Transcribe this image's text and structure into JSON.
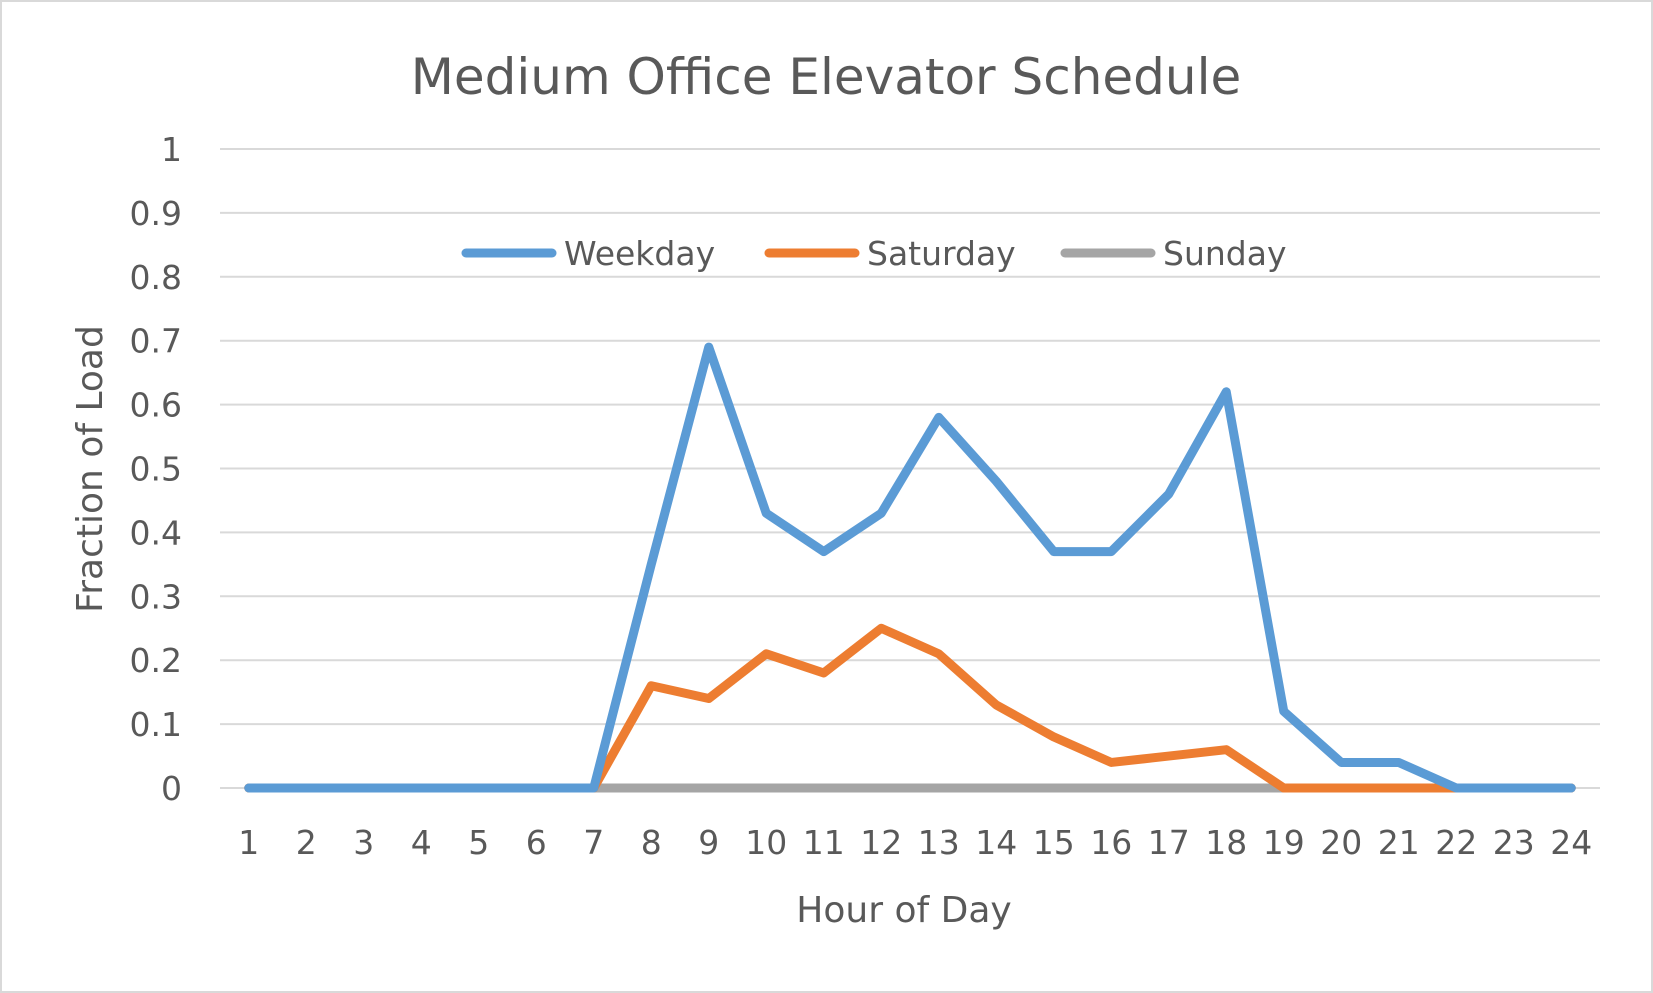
{
  "chart_data": {
    "type": "line",
    "title": "Medium Office Elevator Schedule",
    "xlabel": "Hour of Day",
    "ylabel": "Fraction of Load",
    "categories": [
      "1",
      "2",
      "3",
      "4",
      "5",
      "6",
      "7",
      "8",
      "9",
      "10",
      "11",
      "12",
      "13",
      "14",
      "15",
      "16",
      "17",
      "18",
      "19",
      "20",
      "21",
      "22",
      "23",
      "24"
    ],
    "ylim": [
      0,
      1
    ],
    "yticks": [
      "0",
      "0.1",
      "0.2",
      "0.3",
      "0.4",
      "0.5",
      "0.6",
      "0.7",
      "0.8",
      "0.9",
      "1"
    ],
    "grid": true,
    "legend_position": "top",
    "series": [
      {
        "name": "Weekday",
        "color": "#5b9bd5",
        "values": [
          0,
          0,
          0,
          0,
          0,
          0,
          0,
          0.35,
          0.69,
          0.43,
          0.37,
          0.43,
          0.58,
          0.48,
          0.37,
          0.37,
          0.46,
          0.62,
          0.12,
          0.04,
          0.04,
          0,
          0,
          0
        ]
      },
      {
        "name": "Saturday",
        "color": "#ed7d31",
        "values": [
          0,
          0,
          0,
          0,
          0,
          0,
          0,
          0.16,
          0.14,
          0.21,
          0.18,
          0.25,
          0.21,
          0.13,
          0.08,
          0.04,
          0.05,
          0.06,
          0,
          0,
          0,
          0,
          0,
          0
        ]
      },
      {
        "name": "Sunday",
        "color": "#a5a5a5",
        "values": [
          0,
          0,
          0,
          0,
          0,
          0,
          0,
          0,
          0,
          0,
          0,
          0,
          0,
          0,
          0,
          0,
          0,
          0,
          0,
          0,
          0,
          0,
          0,
          0
        ]
      }
    ]
  }
}
